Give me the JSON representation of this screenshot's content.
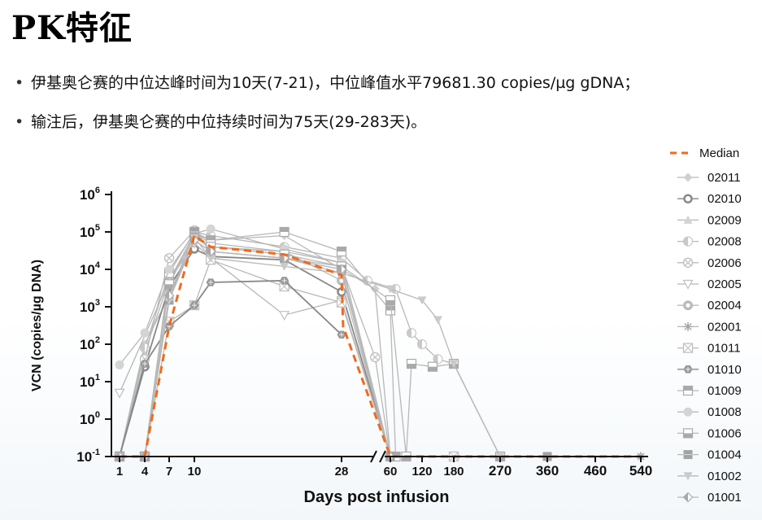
{
  "page": {
    "title": "PK特征",
    "bullets": [
      "伊基奥仑赛的中位达峰时间为10天(7-21)，中位峰值水平79681.30 copies/µg gDNA；",
      "输注后，伊基奥仑赛的中位持续时间为75天(29-283天)。"
    ]
  },
  "chart_data": {
    "type": "line",
    "xlabel": "Days post infusion",
    "ylabel": "VCN (copies/µg DNA)",
    "y_scale": "log",
    "ylim": [
      0.1,
      1000000
    ],
    "y_ticks": [
      {
        "base": "10",
        "exp": "-1"
      },
      {
        "base": "10",
        "exp": "0"
      },
      {
        "base": "10",
        "exp": "1"
      },
      {
        "base": "10",
        "exp": "2"
      },
      {
        "base": "10",
        "exp": "3"
      },
      {
        "base": "10",
        "exp": "4"
      },
      {
        "base": "10",
        "exp": "5"
      },
      {
        "base": "10",
        "exp": "6"
      }
    ],
    "x_ticks_left": [
      "1",
      "4",
      "7",
      "10",
      "28"
    ],
    "x_ticks_right": [
      "60",
      "120",
      "180",
      "270",
      "360",
      "460",
      "540"
    ],
    "axis_break": true,
    "legend_position": "right",
    "colors": {
      "median": "#f06a1c",
      "series": "#b8b8b8",
      "dark_series": "#888888",
      "axis": "#111111"
    },
    "median": {
      "name": "Median",
      "points": [
        [
          1,
          0.1
        ],
        [
          4,
          0.1
        ],
        [
          7,
          300
        ],
        [
          10,
          80000
        ],
        [
          12,
          40000
        ],
        [
          21,
          25000
        ],
        [
          28,
          7000
        ],
        [
          29,
          300
        ],
        [
          60,
          0.1
        ],
        [
          120,
          0.1
        ],
        [
          180,
          0.1
        ],
        [
          270,
          0.1
        ],
        [
          360,
          0.1
        ],
        [
          460,
          0.1
        ],
        [
          540,
          0.1
        ]
      ]
    },
    "series": [
      {
        "name": "02011",
        "marker": "diamond",
        "points": [
          [
            1,
            0.1
          ],
          [
            4,
            100
          ],
          [
            7,
            2000
          ],
          [
            10,
            90000
          ],
          [
            12,
            60000
          ],
          [
            21,
            80000
          ],
          [
            28,
            10000
          ],
          [
            50,
            3000
          ],
          [
            60,
            0.1
          ],
          [
            540,
            0.1
          ]
        ]
      },
      {
        "name": "02010",
        "marker": "ring",
        "points": [
          [
            1,
            0.1
          ],
          [
            4,
            25
          ],
          [
            7,
            3500
          ],
          [
            10,
            35000
          ],
          [
            12,
            22000
          ],
          [
            21,
            18000
          ],
          [
            28,
            2500
          ],
          [
            60,
            0.1
          ]
        ]
      },
      {
        "name": "02009",
        "marker": "triangle",
        "points": [
          [
            1,
            0.1
          ],
          [
            4,
            60
          ],
          [
            7,
            5000
          ],
          [
            10,
            70000
          ],
          [
            12,
            40000
          ],
          [
            21,
            30000
          ],
          [
            28,
            15000
          ],
          [
            60,
            0.1
          ]
        ]
      },
      {
        "name": "02008",
        "marker": "half-circle",
        "points": [
          [
            1,
            0.1
          ],
          [
            4,
            80
          ],
          [
            7,
            8000
          ],
          [
            10,
            100000
          ],
          [
            12,
            80000
          ],
          [
            21,
            40000
          ],
          [
            28,
            20000
          ],
          [
            45,
            5000
          ],
          [
            70,
            3000
          ],
          [
            100,
            200
          ],
          [
            120,
            100
          ],
          [
            150,
            40
          ],
          [
            180,
            30
          ],
          [
            270,
            0.1
          ]
        ]
      },
      {
        "name": "02006",
        "marker": "circle-x",
        "points": [
          [
            1,
            0.1
          ],
          [
            4,
            40
          ],
          [
            7,
            20000
          ],
          [
            10,
            110000
          ],
          [
            12,
            30000
          ],
          [
            21,
            20000
          ],
          [
            28,
            12000
          ],
          [
            50,
            45
          ],
          [
            60,
            0.1
          ]
        ]
      },
      {
        "name": "02005",
        "marker": "triangle-down",
        "points": [
          [
            1,
            5
          ],
          [
            7,
            5000
          ],
          [
            10,
            50000
          ],
          [
            12,
            20000
          ],
          [
            21,
            600
          ],
          [
            28,
            1500
          ],
          [
            60,
            0.1
          ]
        ]
      },
      {
        "name": "02004",
        "marker": "bullseye",
        "points": [
          [
            1,
            0.1
          ],
          [
            4,
            0.1
          ],
          [
            7,
            5000
          ],
          [
            10,
            90000
          ],
          [
            12,
            50000
          ],
          [
            21,
            30000
          ],
          [
            28,
            5000
          ],
          [
            60,
            0.1
          ]
        ]
      },
      {
        "name": "02001",
        "marker": "star",
        "points": [
          [
            1,
            0.1
          ],
          [
            4,
            0.1
          ],
          [
            7,
            1500
          ],
          [
            10,
            60000
          ],
          [
            12,
            30000
          ],
          [
            21,
            20000
          ],
          [
            28,
            8000
          ],
          [
            60,
            0.1
          ],
          [
            540,
            0.1
          ]
        ]
      },
      {
        "name": "01011",
        "marker": "square-x",
        "points": [
          [
            1,
            0.1
          ],
          [
            4,
            0.1
          ],
          [
            7,
            400
          ],
          [
            10,
            1100
          ],
          [
            12,
            18000
          ],
          [
            21,
            3500
          ],
          [
            28,
            1300
          ],
          [
            60,
            0.1
          ],
          [
            180,
            0.1
          ]
        ]
      },
      {
        "name": "01010",
        "marker": "hexagon",
        "points": [
          [
            1,
            0.1
          ],
          [
            4,
            30
          ],
          [
            7,
            300
          ],
          [
            10,
            1100
          ],
          [
            12,
            4500
          ],
          [
            21,
            5000
          ],
          [
            28,
            180
          ]
        ]
      },
      {
        "name": "01009",
        "marker": "square-top",
        "points": [
          [
            1,
            0.1
          ],
          [
            4,
            0.1
          ],
          [
            7,
            8000
          ],
          [
            10,
            100000
          ],
          [
            12,
            60000
          ],
          [
            21,
            100000
          ],
          [
            28,
            30000
          ],
          [
            60,
            800
          ],
          [
            70,
            0.1
          ]
        ]
      },
      {
        "name": "01008",
        "marker": "circle",
        "points": [
          [
            1,
            28
          ],
          [
            4,
            200
          ],
          [
            7,
            10000
          ],
          [
            10,
            90000
          ],
          [
            12,
            120000
          ],
          [
            21,
            35000
          ],
          [
            28,
            15000
          ],
          [
            60,
            0.1
          ]
        ]
      },
      {
        "name": "01006",
        "marker": "square-bottom",
        "points": [
          [
            1,
            0.1
          ],
          [
            4,
            0.1
          ],
          [
            7,
            4000
          ],
          [
            10,
            80000
          ],
          [
            12,
            40000
          ],
          [
            21,
            25000
          ],
          [
            28,
            12000
          ],
          [
            60,
            1500
          ],
          [
            90,
            0.1
          ],
          [
            100,
            30
          ],
          [
            140,
            25
          ],
          [
            180,
            30
          ],
          [
            270,
            0.1
          ]
        ]
      },
      {
        "name": "01004",
        "marker": "square-filled",
        "points": [
          [
            1,
            0.1
          ],
          [
            4,
            0.1
          ],
          [
            7,
            1500
          ],
          [
            10,
            100000
          ],
          [
            12,
            30000
          ],
          [
            21,
            20000
          ],
          [
            28,
            10000
          ],
          [
            60,
            0.1
          ],
          [
            360,
            0.1
          ]
        ]
      },
      {
        "name": "01002",
        "marker": "triangle-down-filled",
        "points": [
          [
            1,
            0.1
          ],
          [
            4,
            0.1
          ],
          [
            7,
            1500
          ],
          [
            10,
            70000
          ],
          [
            12,
            20000
          ],
          [
            21,
            12000
          ],
          [
            28,
            8000
          ],
          [
            60,
            3000
          ],
          [
            120,
            1500
          ],
          [
            150,
            450
          ],
          [
            180,
            30
          ],
          [
            270,
            0.1
          ]
        ]
      },
      {
        "name": "01001",
        "marker": "diamond-half",
        "points": [
          [
            1,
            0.1
          ],
          [
            4,
            0.1
          ],
          [
            7,
            2000
          ],
          [
            10,
            60000
          ],
          [
            12,
            30000
          ],
          [
            21,
            20000
          ],
          [
            28,
            10000
          ],
          [
            60,
            0.1
          ]
        ]
      }
    ]
  }
}
